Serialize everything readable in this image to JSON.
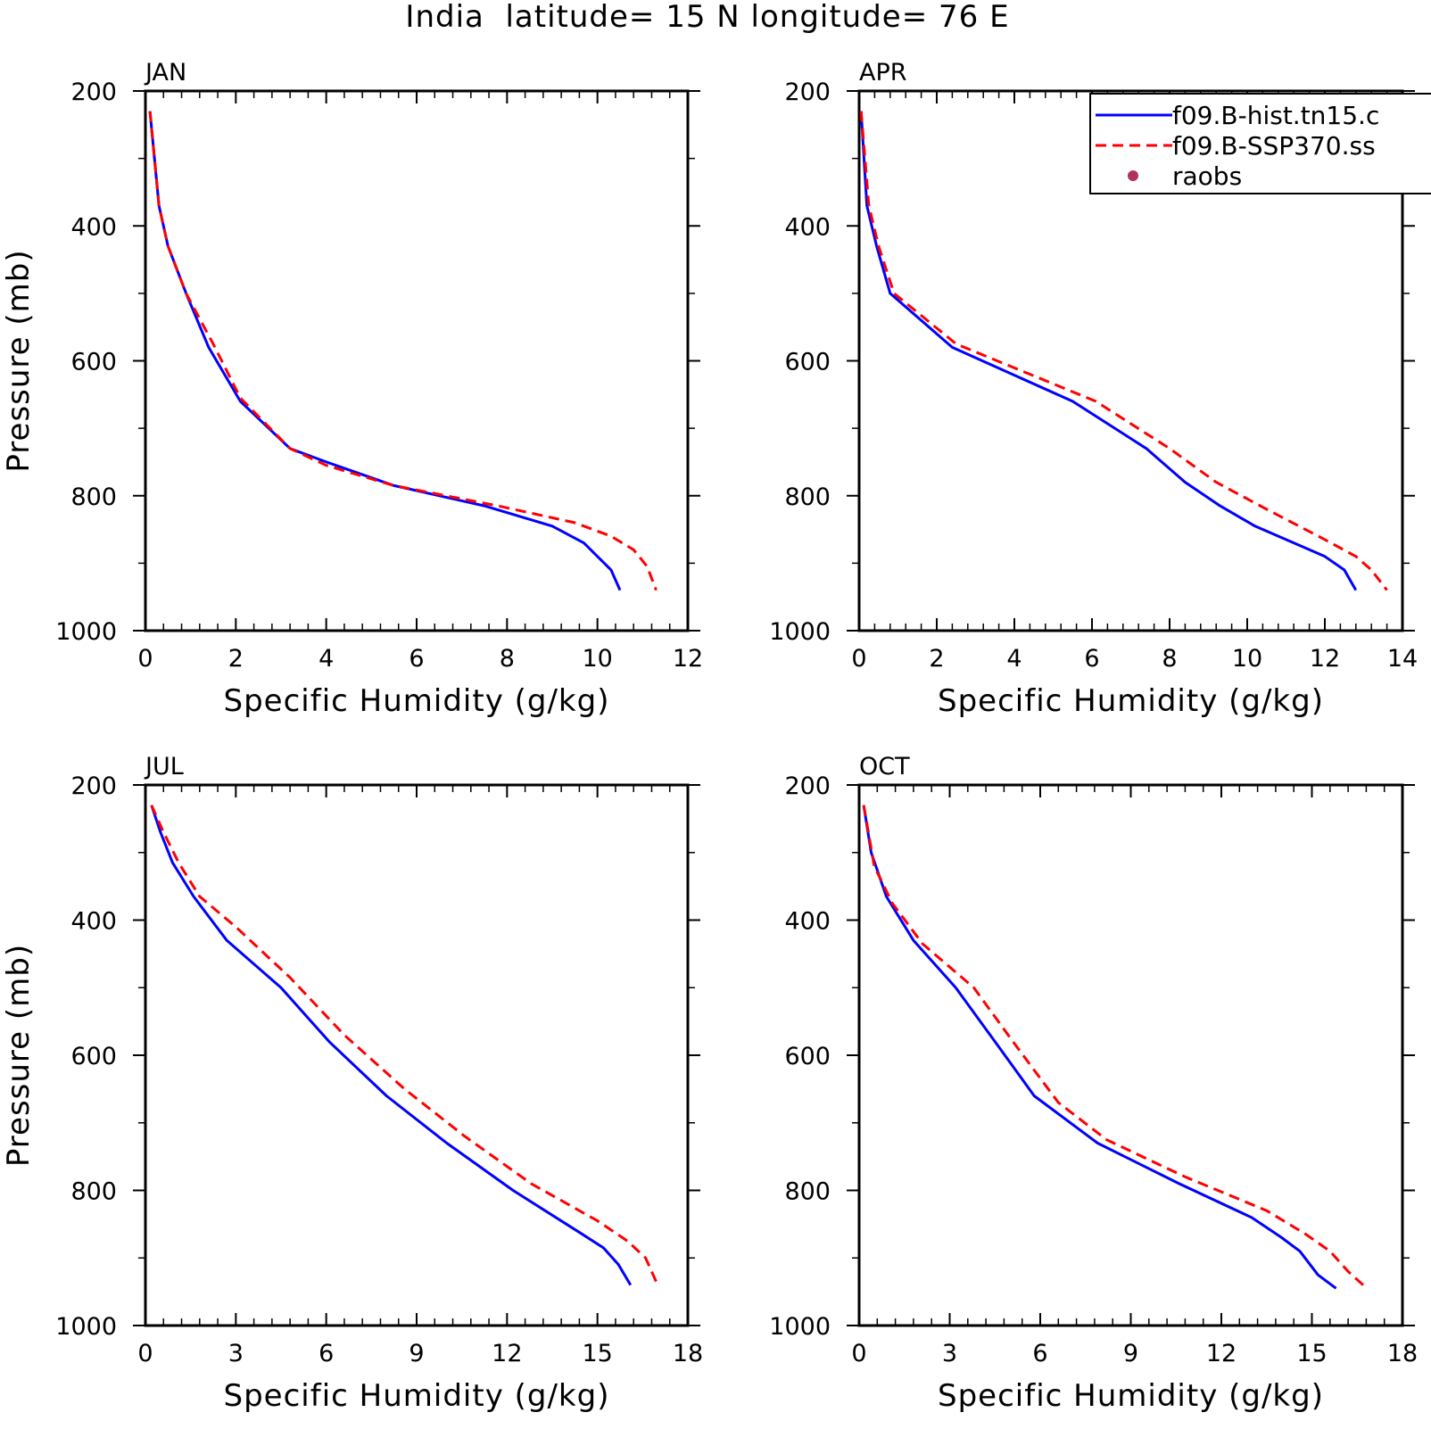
{
  "title": "India  latitude= 15 N longitude= 76 E",
  "colors": {
    "hist": "#0000ff",
    "ssp": "#ff0000",
    "raobs": "#b03060",
    "axis": "#000000"
  },
  "legend": {
    "placement": "top-right",
    "entries": [
      {
        "label": "f09.B-hist.tn15.c",
        "style": "solid",
        "color": "#0000ff"
      },
      {
        "label": "f09.B-SSP370.ss",
        "style": "dashed",
        "color": "#ff0000"
      },
      {
        "label": "raobs",
        "style": "marker",
        "color": "#b03060"
      }
    ]
  },
  "chart_data": [
    {
      "type": "line",
      "panel_label": "JAN",
      "xlabel": "Specific Humidity (g/kg)",
      "ylabel": "Pressure (mb)",
      "xlim": [
        0,
        12
      ],
      "ylim": [
        200,
        1000
      ],
      "y_inverted": true,
      "xticks": [
        0,
        2,
        4,
        6,
        8,
        10,
        12
      ],
      "yticks": [
        200,
        400,
        600,
        800,
        1000
      ],
      "series": [
        {
          "key": "hist",
          "style": "solid",
          "x": [
            0.1,
            0.3,
            0.5,
            0.9,
            1.4,
            2.1,
            3.2,
            4.0,
            5.5,
            7.5,
            9.0,
            9.7,
            10.0,
            10.3,
            10.5
          ],
          "y": [
            230,
            370,
            430,
            500,
            580,
            660,
            730,
            750,
            785,
            815,
            845,
            870,
            890,
            910,
            940
          ]
        },
        {
          "key": "ssp",
          "style": "dashed",
          "x": [
            0.1,
            0.3,
            0.5,
            0.9,
            1.5,
            2.1,
            3.2,
            4.0,
            5.5,
            7.8,
            9.5,
            10.3,
            10.8,
            11.1,
            11.3
          ],
          "y": [
            230,
            370,
            430,
            500,
            575,
            655,
            730,
            755,
            785,
            815,
            840,
            860,
            880,
            905,
            940
          ]
        }
      ]
    },
    {
      "type": "line",
      "panel_label": "APR",
      "xlabel": "Specific Humidity (g/kg)",
      "ylabel": "",
      "xlim": [
        0,
        14
      ],
      "ylim": [
        200,
        1000
      ],
      "y_inverted": true,
      "xticks": [
        0,
        2,
        4,
        6,
        8,
        10,
        12,
        14
      ],
      "yticks": [
        200,
        400,
        600,
        800,
        1000
      ],
      "series": [
        {
          "key": "hist",
          "style": "solid",
          "x": [
            0.05,
            0.2,
            0.45,
            0.8,
            2.4,
            5.5,
            7.4,
            8.4,
            9.3,
            10.2,
            12.0,
            12.5,
            12.8
          ],
          "y": [
            230,
            370,
            430,
            500,
            580,
            660,
            730,
            780,
            815,
            845,
            890,
            910,
            940
          ]
        },
        {
          "key": "ssp",
          "style": "dashed",
          "x": [
            0.05,
            0.25,
            0.5,
            0.9,
            2.5,
            6.1,
            8.0,
            9.2,
            10.5,
            12.0,
            12.8,
            13.2,
            13.6
          ],
          "y": [
            230,
            370,
            430,
            500,
            575,
            660,
            730,
            780,
            820,
            865,
            890,
            910,
            940
          ]
        }
      ]
    },
    {
      "type": "line",
      "panel_label": "JUL",
      "xlabel": "Specific Humidity (g/kg)",
      "ylabel": "Pressure (mb)",
      "xlim": [
        0,
        18
      ],
      "ylim": [
        200,
        1000
      ],
      "y_inverted": true,
      "xticks": [
        0,
        3,
        6,
        9,
        12,
        15,
        18
      ],
      "yticks": [
        200,
        400,
        600,
        800,
        1000
      ],
      "series": [
        {
          "key": "hist",
          "style": "solid",
          "x": [
            0.2,
            0.5,
            0.9,
            1.6,
            2.7,
            4.5,
            6.1,
            8.0,
            10.0,
            12.2,
            14.5,
            15.2,
            15.7,
            16.1
          ],
          "y": [
            230,
            270,
            315,
            365,
            430,
            500,
            580,
            660,
            730,
            800,
            865,
            885,
            910,
            940
          ]
        },
        {
          "key": "ssp",
          "style": "dashed",
          "x": [
            0.2,
            0.6,
            1.1,
            1.8,
            3.0,
            4.8,
            6.6,
            8.6,
            10.6,
            12.8,
            15.0,
            16.0,
            16.6,
            17.0
          ],
          "y": [
            230,
            270,
            315,
            365,
            410,
            485,
            570,
            650,
            720,
            790,
            845,
            875,
            900,
            940
          ]
        }
      ]
    },
    {
      "type": "line",
      "panel_label": "OCT",
      "xlabel": "Specific Humidity (g/kg)",
      "ylabel": "",
      "xlim": [
        0,
        18
      ],
      "ylim": [
        200,
        1000
      ],
      "y_inverted": true,
      "xticks": [
        0,
        3,
        6,
        9,
        12,
        15,
        18
      ],
      "yticks": [
        200,
        400,
        600,
        800,
        1000
      ],
      "series": [
        {
          "key": "hist",
          "style": "solid",
          "x": [
            0.15,
            0.4,
            0.9,
            1.8,
            3.2,
            4.5,
            5.8,
            7.9,
            10.6,
            13.0,
            14.0,
            14.6,
            15.2,
            15.8
          ],
          "y": [
            230,
            300,
            365,
            430,
            500,
            580,
            660,
            730,
            790,
            840,
            870,
            890,
            925,
            945
          ]
        },
        {
          "key": "ssp",
          "style": "dashed",
          "x": [
            0.15,
            0.5,
            1.1,
            2.1,
            3.8,
            5.1,
            6.6,
            8.2,
            10.8,
            13.5,
            14.8,
            15.6,
            16.2,
            16.7
          ],
          "y": [
            230,
            320,
            375,
            435,
            500,
            580,
            670,
            725,
            780,
            830,
            865,
            890,
            920,
            940
          ]
        }
      ]
    }
  ]
}
